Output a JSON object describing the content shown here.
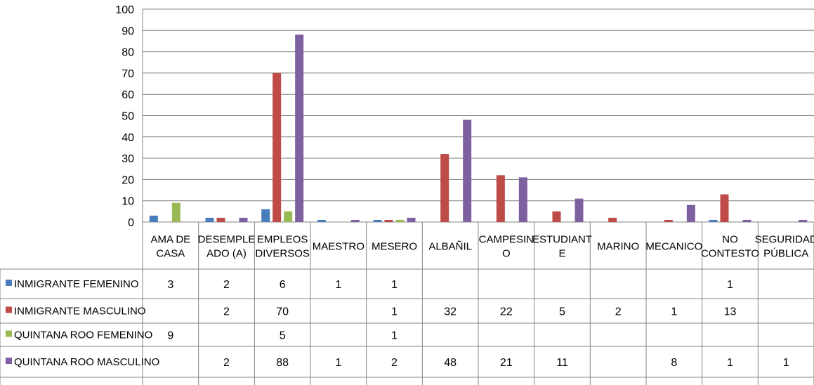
{
  "chart_data": {
    "type": "bar",
    "title": "",
    "xlabel": "",
    "ylabel": "",
    "ylim": [
      0,
      100
    ],
    "yticks": [
      0,
      10,
      20,
      30,
      40,
      50,
      60,
      70,
      80,
      90,
      100
    ],
    "grid": true,
    "legend_placement": "data-table-left",
    "categories": [
      [
        "AMA DE",
        "CASA"
      ],
      [
        "DESEMPLE",
        "ADO (A)"
      ],
      [
        "EMPLEOS",
        "DIVERSOS"
      ],
      [
        "MAESTRO"
      ],
      [
        "MESERO"
      ],
      [
        "ALBAÑIL"
      ],
      [
        "CAMPESIN",
        "O"
      ],
      [
        "ESTUDIANT",
        "E"
      ],
      [
        "MARINO"
      ],
      [
        "MECANICO"
      ],
      [
        "NO",
        "CONTESTO"
      ],
      [
        "SEGURIDAD",
        "PÚBLICA"
      ]
    ],
    "series": [
      {
        "name": "INMIGRANTE FEMENINO",
        "color": "#4a7ebb",
        "values": [
          3,
          2,
          6,
          1,
          1,
          null,
          null,
          null,
          null,
          null,
          1,
          null
        ]
      },
      {
        "name": "INMIGRANTE MASCULINO",
        "color": "#be4b48",
        "values": [
          null,
          2,
          70,
          null,
          1,
          32,
          22,
          5,
          2,
          1,
          13,
          null
        ]
      },
      {
        "name": "QUINTANA ROO FEMENINO",
        "color": "#98b954",
        "values": [
          9,
          null,
          5,
          null,
          1,
          null,
          null,
          null,
          null,
          null,
          null,
          null
        ]
      },
      {
        "name": "QUINTANA ROO MASCULINO",
        "color": "#7d60a0",
        "values": [
          null,
          2,
          88,
          1,
          2,
          48,
          21,
          11,
          null,
          8,
          1,
          1
        ]
      }
    ]
  }
}
